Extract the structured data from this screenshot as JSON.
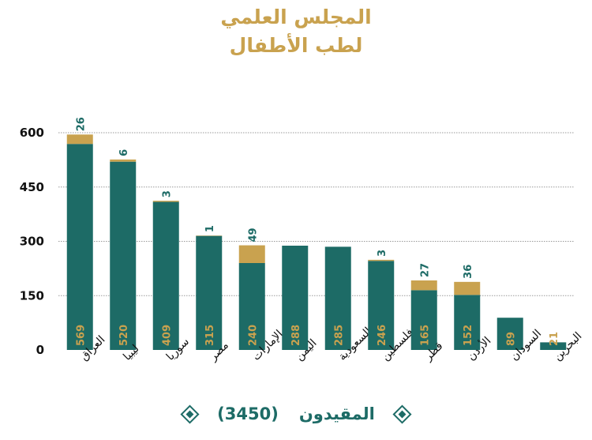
{
  "title": {
    "line1": "المجلس العلمي",
    "line2": "لطب الأطفال"
  },
  "legend": {
    "label": "المقيدون",
    "count": "(3450)"
  },
  "colors": {
    "primary": "#1d6b66",
    "accent": "#c9a24f",
    "grid": "#9a9a9a"
  },
  "chart_data": {
    "type": "bar",
    "stacked": true,
    "categories": [
      "العراق",
      "ليبيا",
      "سوريا",
      "مصر",
      "الإمارات",
      "اليمن",
      "السعودية",
      "فلسطين",
      "قطر",
      "الأردن",
      "السودان",
      "البحرين"
    ],
    "series": [
      {
        "color": "#1d6b66",
        "values": [
          569,
          520,
          409,
          315,
          240,
          288,
          285,
          246,
          165,
          152,
          89,
          21
        ]
      },
      {
        "color": "#c9a24f",
        "values": [
          26,
          6,
          3,
          1,
          49,
          0,
          0,
          3,
          27,
          36,
          0,
          0
        ]
      }
    ],
    "bottom_labels": [
      "569",
      "520",
      "409",
      "315",
      "240",
      "288",
      "285",
      "246",
      "165",
      "152",
      "89",
      "21"
    ],
    "top_labels": [
      "26",
      "6",
      "3",
      "1",
      "49",
      "",
      "",
      "3",
      "27",
      "36",
      "",
      ""
    ],
    "y_ticks": [
      "0",
      "150",
      "300",
      "450",
      "600"
    ],
    "ylim": [
      0,
      600
    ],
    "grid": true
  }
}
